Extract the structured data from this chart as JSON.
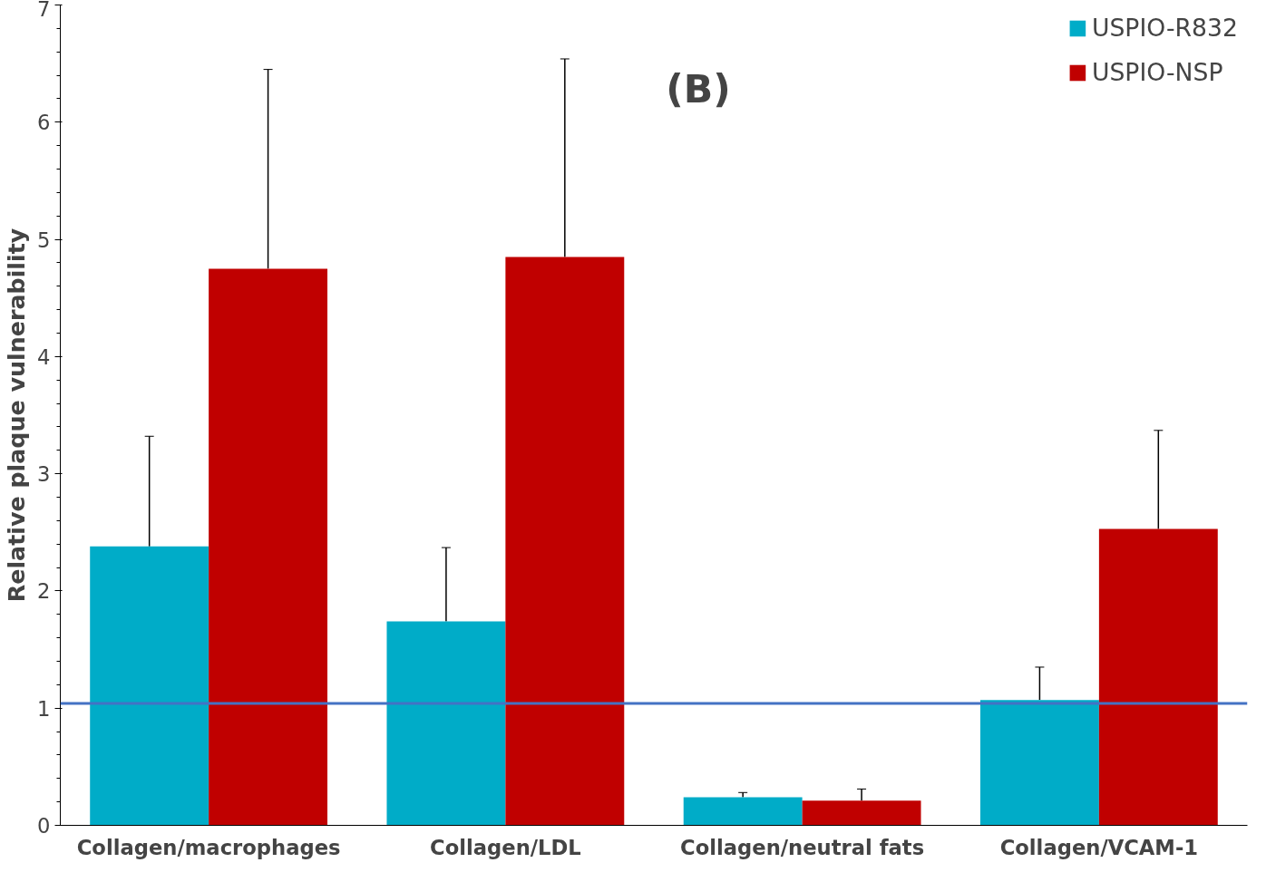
{
  "chart_data": {
    "type": "bar",
    "ylabel": "Relative plaque vulnerability",
    "annotations": [
      "(B)"
    ],
    "categories": [
      "Collagen/macrophages",
      "Collagen/LDL",
      "Collagen/neutral fats",
      "Collagen/VCAM-1"
    ],
    "series": [
      {
        "name": "USPIO-R832",
        "color": "#00acc8",
        "values": [
          2.38,
          1.74,
          0.24,
          1.07
        ],
        "errors": [
          [
            2.38,
            3.32
          ],
          [
            1.74,
            2.37
          ],
          [
            0.24,
            0.28
          ],
          [
            1.07,
            1.35
          ]
        ]
      },
      {
        "name": "USPIO-NSP",
        "color": "#c00000",
        "values": [
          4.75,
          4.85,
          0.21,
          2.53
        ],
        "errors": [
          [
            4.75,
            6.45
          ],
          [
            4.85,
            6.54
          ],
          [
            0.21,
            0.31
          ],
          [
            2.53,
            3.37
          ]
        ]
      }
    ],
    "ref_lines": [
      {
        "axis": "y",
        "value": 1.04,
        "color": "#4472c4"
      }
    ],
    "ylim": [
      0,
      7
    ],
    "yticks": [
      0,
      1,
      2,
      3,
      4,
      5,
      6,
      7
    ],
    "grid": false,
    "legend": "top right"
  }
}
